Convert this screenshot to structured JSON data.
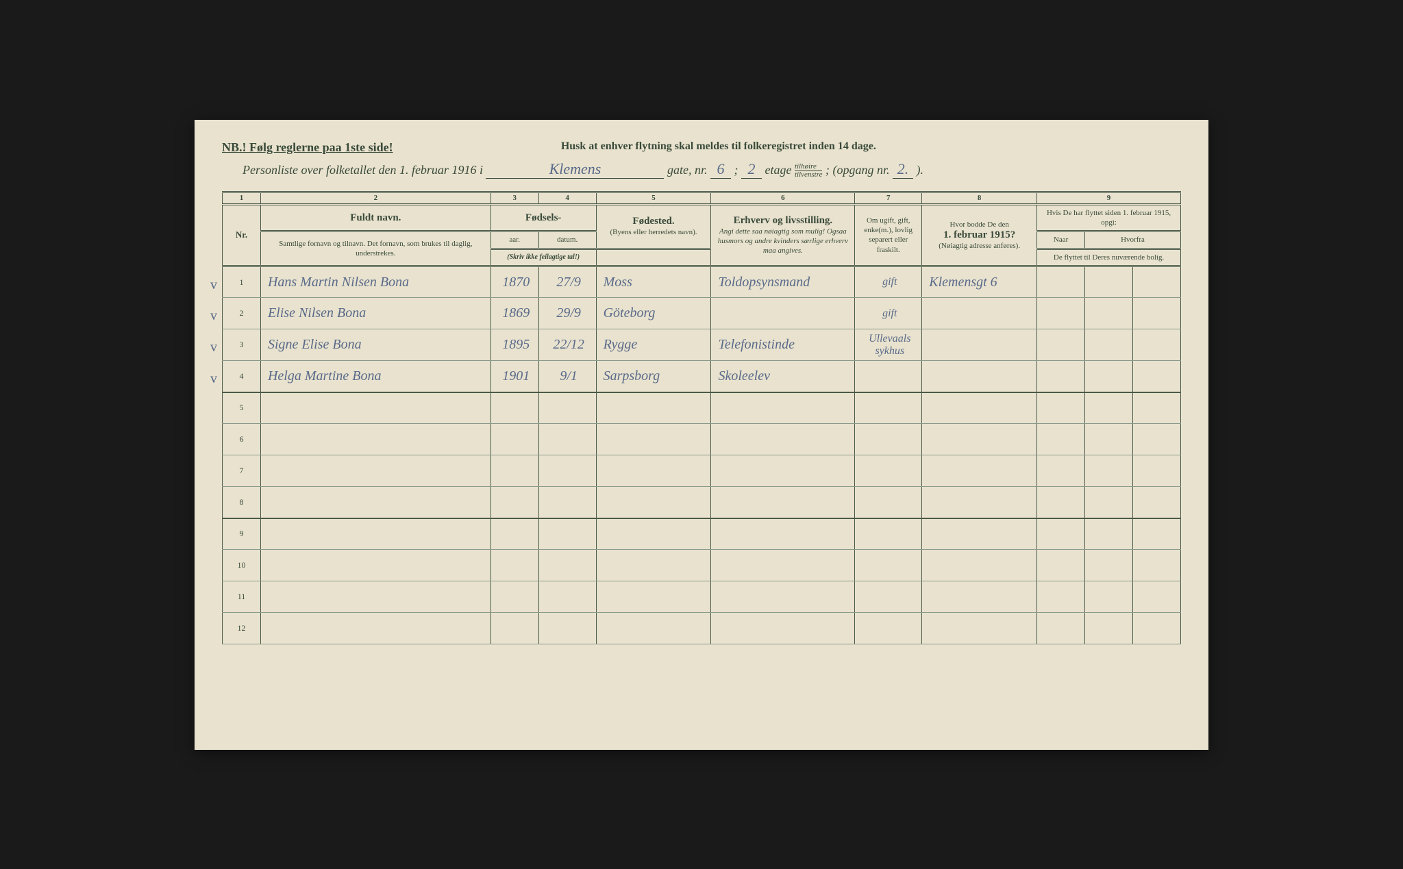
{
  "header": {
    "nb": "NB.! Følg reglerne paa 1ste side!",
    "husk": "Husk at enhver flytning skal meldes til folkeregistret inden 14 dage.",
    "personliste_pre": "Personliste over folketallet den 1. februar 1916 i",
    "gate_name": "Klemens",
    "gate_label": "gate, nr.",
    "gate_nr": "6",
    "etage_nr": "2",
    "etage_label": "etage",
    "side_top": "tilhøire",
    "side_bottom": "tilvenstre",
    "opgang_label": "; (opgang nr.",
    "opgang_nr": "2.",
    "opgang_close": ")."
  },
  "columns": {
    "n1": "1",
    "n2": "2",
    "n3": "3",
    "n4": "4",
    "n5": "5",
    "n6": "6",
    "n7": "7",
    "n8": "8",
    "n9": "9",
    "nr": "Nr.",
    "fuldt_navn": "Fuldt navn.",
    "fuldt_sub": "Samtlige fornavn og tilnavn. Det fornavn, som brukes til daglig, understrekes.",
    "fodsels": "Fødsels-",
    "aar": "aar.",
    "datum": "datum.",
    "skriv_ikke": "(Skriv ikke feilagtige tal!)",
    "fodested": "Fødested.",
    "fodested_sub": "(Byens eller herredets navn).",
    "erhverv": "Erhverv og livsstilling.",
    "erhverv_sub": "Angi dette saa nøiagtig som mulig! Ogsaa husmors og andre kvinders særlige erhverv maa angives.",
    "ugift": "Om ugift, gift, enke(m.), lovlig separert eller fraskilt.",
    "hvor_bodde": "Hvor bodde De den",
    "hvor_date": "1. februar 1915?",
    "hvor_sub": "(Nøiagtig adresse anføres).",
    "flyttet": "Hvis De har flyttet siden 1. februar 1915, opgi:",
    "naar": "Naar",
    "hvorfra": "Hvorfra",
    "flyttet_sub": "De flyttet til Deres nuværende bolig."
  },
  "rows": [
    {
      "nr": "1",
      "check": "v",
      "name": "Hans Martin Nilsen Bona",
      "aar": "1870",
      "datum": "27/9",
      "sted": "Moss",
      "erhverv": "Toldopsynsmand",
      "status": "gift",
      "bodde": "Klemensgt 6"
    },
    {
      "nr": "2",
      "check": "v",
      "name": "Elise Nilsen Bona",
      "aar": "1869",
      "datum": "29/9",
      "sted": "Göteborg",
      "erhverv": "",
      "status": "gift",
      "bodde": ""
    },
    {
      "nr": "3",
      "check": "v",
      "name": "Signe Elise Bona",
      "aar": "1895",
      "datum": "22/12",
      "sted": "Rygge",
      "erhverv": "Telefonistinde",
      "status": "Ullevaals sykhus",
      "bodde": ""
    },
    {
      "nr": "4",
      "check": "v",
      "name": "Helga Martine Bona",
      "aar": "1901",
      "datum": "9/1",
      "sted": "Sarpsborg",
      "erhverv": "Skoleelev",
      "status": "",
      "bodde": ""
    },
    {
      "nr": "5",
      "check": "",
      "name": "",
      "aar": "",
      "datum": "",
      "sted": "",
      "erhverv": "",
      "status": "",
      "bodde": ""
    },
    {
      "nr": "6",
      "check": "",
      "name": "",
      "aar": "",
      "datum": "",
      "sted": "",
      "erhverv": "",
      "status": "",
      "bodde": ""
    },
    {
      "nr": "7",
      "check": "",
      "name": "",
      "aar": "",
      "datum": "",
      "sted": "",
      "erhverv": "",
      "status": "",
      "bodde": ""
    },
    {
      "nr": "8",
      "check": "",
      "name": "",
      "aar": "",
      "datum": "",
      "sted": "",
      "erhverv": "",
      "status": "",
      "bodde": ""
    },
    {
      "nr": "9",
      "check": "",
      "name": "",
      "aar": "",
      "datum": "",
      "sted": "",
      "erhverv": "",
      "status": "",
      "bodde": ""
    },
    {
      "nr": "10",
      "check": "",
      "name": "",
      "aar": "",
      "datum": "",
      "sted": "",
      "erhverv": "",
      "status": "",
      "bodde": ""
    },
    {
      "nr": "11",
      "check": "",
      "name": "",
      "aar": "",
      "datum": "",
      "sted": "",
      "erhverv": "",
      "status": "",
      "bodde": ""
    },
    {
      "nr": "12",
      "check": "",
      "name": "",
      "aar": "",
      "datum": "",
      "sted": "",
      "erhverv": "",
      "status": "",
      "bodde": ""
    }
  ],
  "style": {
    "paper_bg": "#e8e2ce",
    "print_color": "#3a4a3a",
    "ink_color": "#5a6a8a",
    "border_color": "#4a5a4a"
  }
}
